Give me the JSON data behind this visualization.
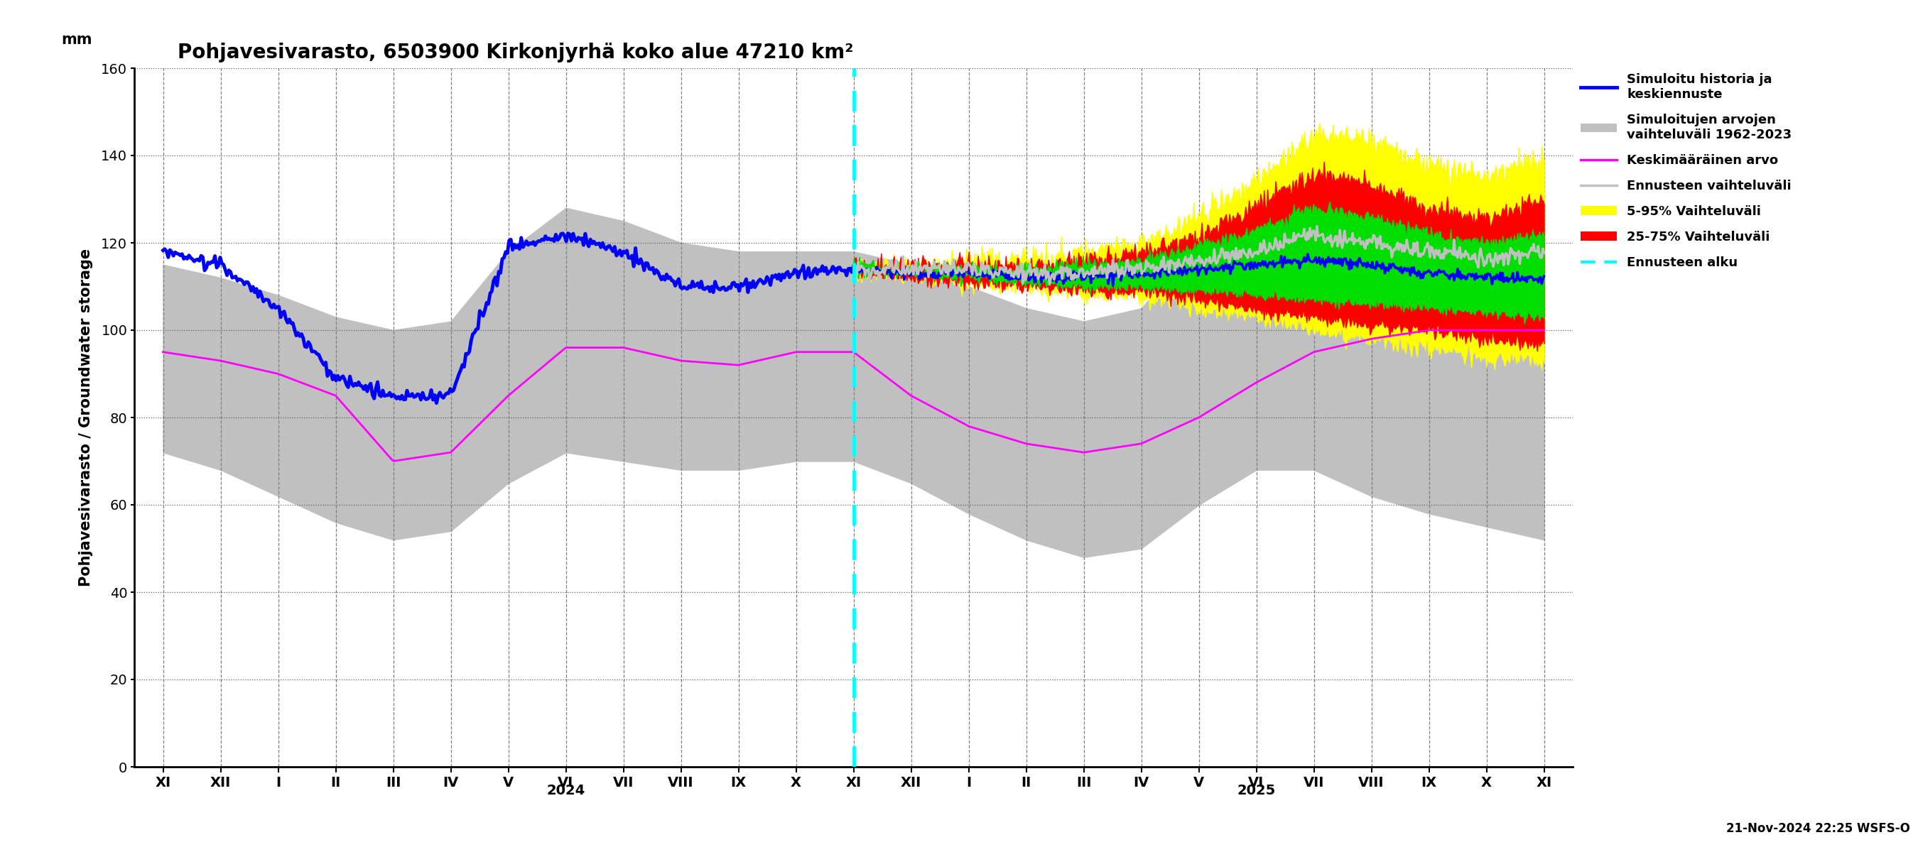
{
  "title": "Pohjavesivarasto, 6503900 Kirkonjyrhä koko alue 47210 km²",
  "ylabel": "Pohjavesivarasto / Groundwater storage",
  "ylabel2": "mm",
  "ylim": [
    0,
    160
  ],
  "yticks": [
    0,
    20,
    40,
    60,
    80,
    100,
    120,
    140,
    160
  ],
  "timestamp_label": "21-Nov-2024 22:25 WSFS-O",
  "background_color": "#ffffff",
  "title_fontsize": 20,
  "axis_fontsize": 15,
  "tick_fontsize": 14,
  "legend_fontsize": 13
}
